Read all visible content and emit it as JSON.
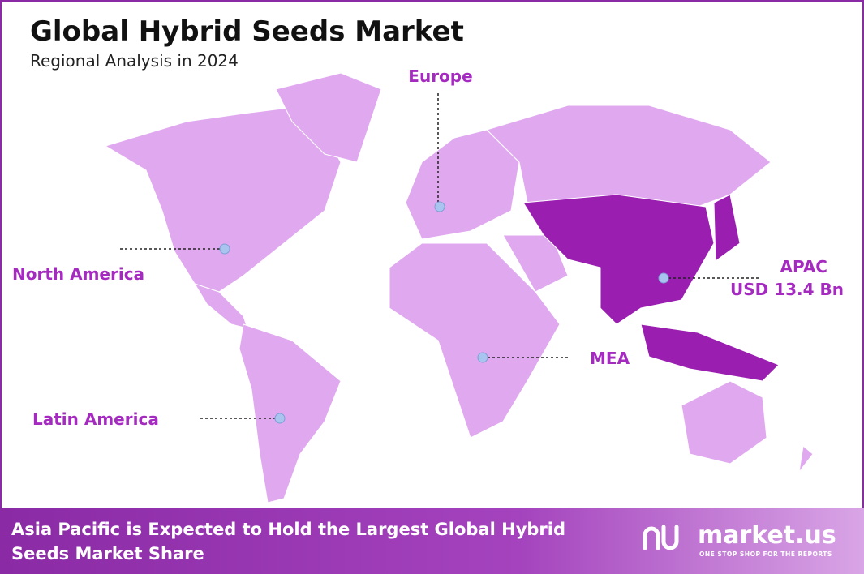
{
  "header": {
    "title": "Global Hybrid Seeds Market",
    "subtitle": "Regional Analysis in 2024"
  },
  "regions": [
    {
      "label": "Europe"
    },
    {
      "label": "North America"
    },
    {
      "label": "APAC",
      "value_label": "USD 13.4 Bn"
    },
    {
      "label": "MEA"
    },
    {
      "label": "Latin America"
    }
  ],
  "footer": {
    "headline": [
      "Asia Pacific is Expected to Hold the Largest Global Hybrid",
      "Seeds Market Share"
    ],
    "brand": "market.us",
    "tagline": "ONE STOP SHOP FOR THE REPORTS"
  }
}
